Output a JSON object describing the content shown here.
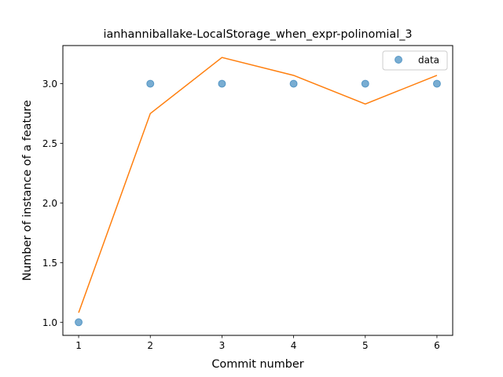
{
  "chart_data": {
    "type": "scatter",
    "title": "ianhanniballake-LocalStorage_when_expr-polinomial_3",
    "xlabel": "Commit number",
    "ylabel": "Number of instance of a feature",
    "x_ticks": [
      "1",
      "2",
      "3",
      "4",
      "5",
      "6"
    ],
    "y_ticks": [
      "1.0",
      "1.5",
      "2.0",
      "2.5",
      "3.0"
    ],
    "xlim": [
      0.78,
      6.22
    ],
    "ylim": [
      0.89,
      3.32
    ],
    "legend_position": "upper right",
    "grid": false,
    "series": [
      {
        "name": "data",
        "kind": "scatter",
        "color": "#1f77b4",
        "x": [
          1,
          2,
          3,
          4,
          5,
          6
        ],
        "y": [
          1.0,
          3.0,
          3.0,
          3.0,
          3.0,
          3.0
        ]
      },
      {
        "kind": "line",
        "color": "#ff7f0e",
        "x": [
          1,
          2,
          3,
          4,
          5,
          6
        ],
        "y": [
          1.08,
          2.75,
          3.22,
          3.07,
          2.83,
          3.07
        ]
      }
    ]
  }
}
